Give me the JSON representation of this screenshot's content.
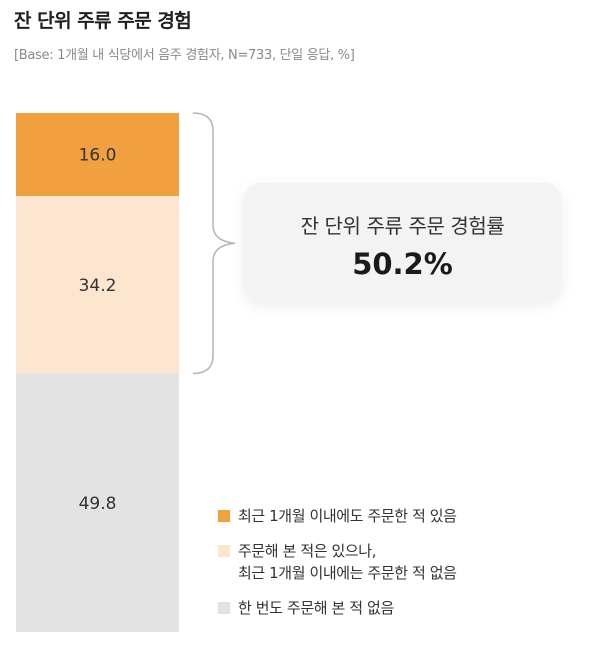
{
  "title": "잔 단위 주류 주문 경험",
  "subtitle": "[Base: 1개월 내 식당에서 음주 경험자, N=733, 단일 응답, %]",
  "callout": {
    "label": "잔 단위 주류 주문 경험률",
    "value": "50.2%"
  },
  "colors": {
    "recent": "#f0a03f",
    "ever": "#fde6cf",
    "never": "#e3e3e3",
    "bracket": "#b5b5b5"
  },
  "legend": [
    {
      "key": "recent",
      "lines": [
        "최근 1개월 이내에도 주문한 적 있음"
      ]
    },
    {
      "key": "ever",
      "lines": [
        "주문해 본 적은 있으나,",
        "최근 1개월 이내에는 주문한 적 없음"
      ]
    },
    {
      "key": "never",
      "lines": [
        "한 번도 주문해 본 적 없음"
      ]
    }
  ],
  "chart_data": {
    "type": "bar",
    "stacked": true,
    "orientation": "vertical",
    "unit": "%",
    "series": [
      {
        "key": "recent",
        "name": "최근 1개월 이내에도 주문한 적 있음",
        "value": 16.0,
        "label": "16.0"
      },
      {
        "key": "ever",
        "name": "주문해 본 적은 있으나, 최근 1개월 이내에는 주문한 적 없음",
        "value": 34.2,
        "label": "34.2"
      },
      {
        "key": "never",
        "name": "한 번도 주문해 본 적 없음",
        "value": 49.8,
        "label": "49.8"
      }
    ],
    "total": 100,
    "bracket_covers": [
      "recent",
      "ever"
    ]
  }
}
